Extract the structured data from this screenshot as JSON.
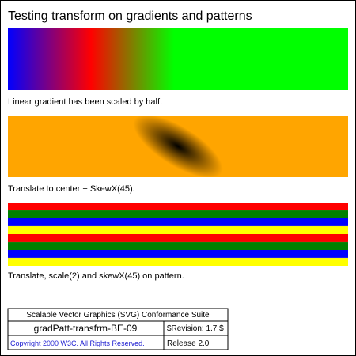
{
  "title": "Testing transform on gradients and patterns",
  "captions": {
    "gradient": "Linear gradient has been scaled by half.",
    "radial": "Translate to center + SkewX(45).",
    "pattern": "Translate, scale(2) and skewX(45) on pattern."
  },
  "colors": {
    "background": "#ffffff",
    "linear_gradient_stops": [
      "#0000ff",
      "#ff0000",
      "#00ff00"
    ],
    "radial_center": "#000000",
    "radial_edge": "#ffa500",
    "pattern_stripes": [
      "#ff0000",
      "#008000",
      "#0000ff",
      "#ffff00"
    ]
  },
  "legend": {
    "suite": "Scalable Vector Graphics (SVG) Conformance Suite",
    "test_name": "gradPatt-transfrm-BE-09",
    "revision": "$Revision: 1.7 $",
    "copyright": "Copyright 2000 W3C. All Rights Reserved.",
    "release": "Release 2.0"
  }
}
